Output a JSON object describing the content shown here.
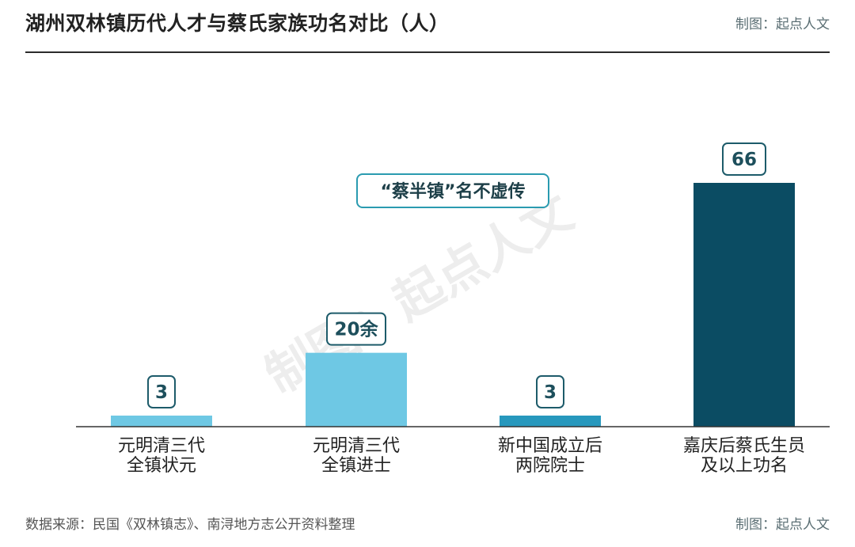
{
  "header": {
    "title": "湖州双林镇历代人才与蔡氏家族功名对比（人）",
    "credit": "制图：起点人文"
  },
  "footer": {
    "source": "数据来源：民国《双林镇志》、南浔地方志公开资料整理",
    "credit": "制图：起点人文"
  },
  "watermark": "制图：起点人文",
  "callout": "“蔡半镇”名不虚传",
  "colors": {
    "bar_1": "#6ec8e4",
    "bar_2": "#6ec8e4",
    "bar_3": "#2798bd",
    "bar_4": "#0b4c63",
    "label_border": "#1d5b6a",
    "label_text": "#1d4f5c",
    "callout_border": "#2a9bb0",
    "callout_text": "#1d3f48"
  },
  "chart_data": {
    "type": "bar",
    "categories": [
      [
        "元明清三代",
        "全镇状元"
      ],
      [
        "元明清三代",
        "全镇进士"
      ],
      [
        "新中国成立后",
        "两院院士"
      ],
      [
        "嘉庆后蔡氏生员",
        "及以上功名"
      ]
    ],
    "values": [
      3,
      20,
      3,
      66
    ],
    "data_labels": [
      "3",
      "20余",
      "3",
      "66"
    ],
    "ylim": [
      0,
      66
    ],
    "grid": false,
    "legend": "none"
  }
}
